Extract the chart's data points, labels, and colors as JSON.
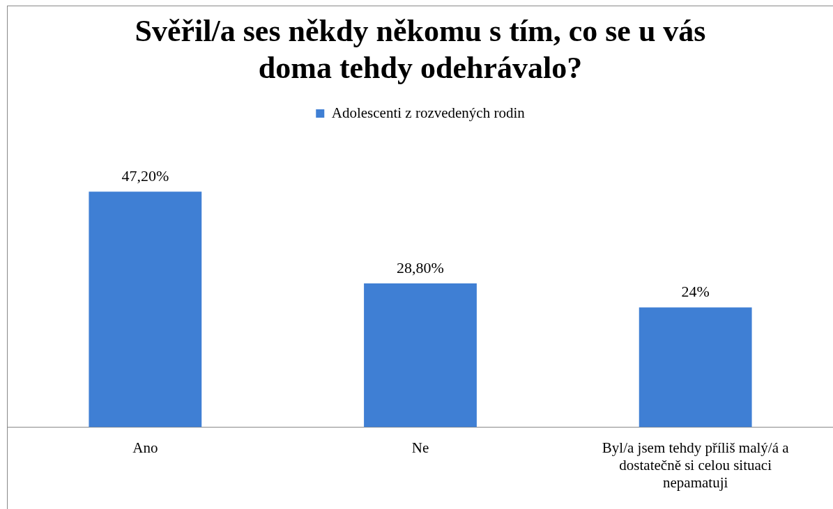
{
  "chart_data": {
    "type": "bar",
    "title": "Svěřil/a ses někdy někomu s tím, co se u vás doma tehdy odehrávalo?",
    "categories": [
      "Ano",
      "Ne",
      "Byl/a jsem tehdy příliš malý/á a dostatečně si celou situaci nepamatuji"
    ],
    "series": [
      {
        "name": "Adolescenti z rozvedených rodin",
        "color": "#3f7fd4",
        "values": [
          47.2,
          28.8,
          24
        ],
        "value_labels": [
          "47,20%",
          "28,80%",
          "24%"
        ]
      }
    ],
    "legend": "top",
    "grid": false
  }
}
